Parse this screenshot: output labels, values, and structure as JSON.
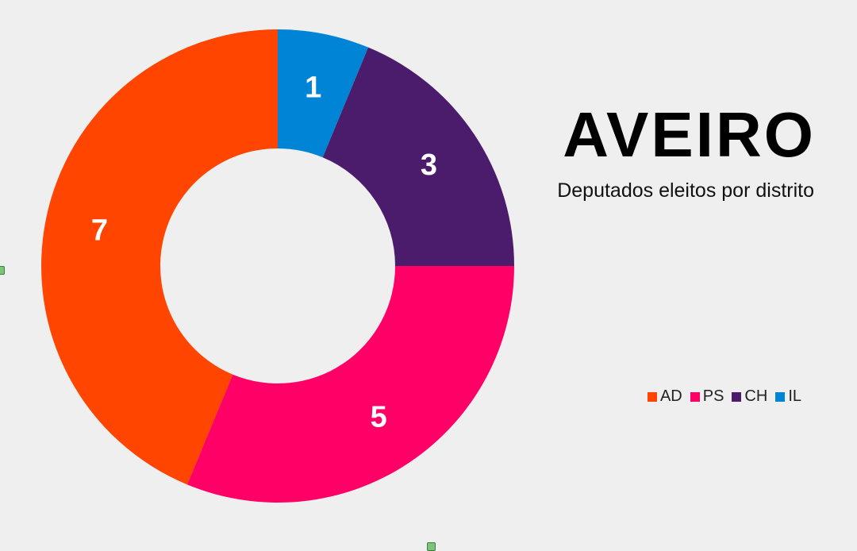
{
  "chart_data": {
    "type": "pie",
    "title": "AVEIRO",
    "subtitle": "Deputados eleitos por distrito",
    "categories": [
      "AD",
      "PS",
      "CH",
      "IL"
    ],
    "values": [
      7,
      5,
      3,
      1
    ],
    "colors": [
      "#ff4500",
      "#ff0066",
      "#4b1c6b",
      "#0084d6"
    ],
    "donut": true,
    "legend_position": "right"
  },
  "legend": {
    "items": [
      {
        "label": "AD",
        "color": "#ff4500"
      },
      {
        "label": "PS",
        "color": "#ff0066"
      },
      {
        "label": "CH",
        "color": "#4b1c6b"
      },
      {
        "label": "IL",
        "color": "#0084d6"
      }
    ]
  }
}
